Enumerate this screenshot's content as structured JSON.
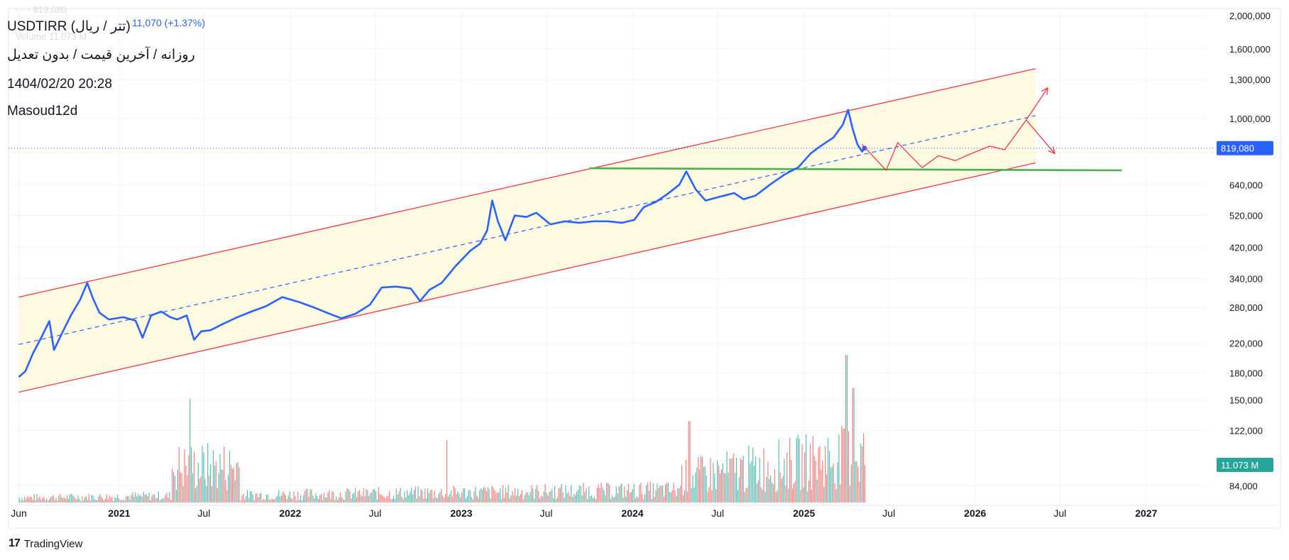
{
  "header": {
    "symbol": "USDTIRR (تتر / ریال)",
    "change": "11,070 (+1.37%)",
    "ghost_price": "◦ ◦ ◦ 819,080",
    "ghost_volume": "Volume  11.073 M",
    "subtitle": "روزانه / آخرین قیمت / بدون تعدیل",
    "datetime": "1404/02/20 20:28",
    "author": "Masoud12d"
  },
  "footer": {
    "brand": "TradingView",
    "logo_glyph": "17"
  },
  "colors": {
    "price_line": "#2962ff",
    "channel": "#f23645",
    "channel_fill": "#fffbe3",
    "support": "#4caf50",
    "vol_up": "#26a69a",
    "vol_down": "#ef5350",
    "volume_badge": "#26a69a"
  },
  "chart_data": {
    "type": "line",
    "y_scale": "log",
    "ylim": [
      78000,
      2100000
    ],
    "xlim": [
      "2020-05-10",
      "2027-05-10"
    ],
    "x_ticks": [
      {
        "date": "2020-06-01",
        "label": "Jun"
      },
      {
        "date": "2021-01-01",
        "label": "2021"
      },
      {
        "date": "2021-07-01",
        "label": "Jul"
      },
      {
        "date": "2022-01-01",
        "label": "2022"
      },
      {
        "date": "2022-07-01",
        "label": "Jul"
      },
      {
        "date": "2023-01-01",
        "label": "2023"
      },
      {
        "date": "2023-07-01",
        "label": "Jul"
      },
      {
        "date": "2024-01-01",
        "label": "2024"
      },
      {
        "date": "2024-07-01",
        "label": "Jul"
      },
      {
        "date": "2025-01-01",
        "label": "2025"
      },
      {
        "date": "2025-07-01",
        "label": "Jul"
      },
      {
        "date": "2026-01-01",
        "label": "2026"
      },
      {
        "date": "2026-07-01",
        "label": "Jul"
      },
      {
        "date": "2027-01-01",
        "label": "2027"
      }
    ],
    "y_ticks": [
      {
        "value": 2000000,
        "label": "2,000,000"
      },
      {
        "value": 1600000,
        "label": "1,600,000"
      },
      {
        "value": 1300000,
        "label": "1,300,000"
      },
      {
        "value": 1000000,
        "label": "1,000,000"
      },
      {
        "value": 640000,
        "label": "640,000"
      },
      {
        "value": 520000,
        "label": "520,000"
      },
      {
        "value": 420000,
        "label": "420,000"
      },
      {
        "value": 340000,
        "label": "340,000"
      },
      {
        "value": 280000,
        "label": "280,000"
      },
      {
        "value": 220000,
        "label": "220,000"
      },
      {
        "value": 180000,
        "label": "180,000"
      },
      {
        "value": 150000,
        "label": "150,000"
      },
      {
        "value": 122000,
        "label": "122,000"
      },
      {
        "value": 84000,
        "label": "84,000"
      }
    ],
    "current_price": {
      "value": 819080,
      "label": "819,080"
    },
    "current_volume": {
      "label": "11.073 M"
    },
    "series": [
      {
        "points": [
          [
            "2020-06-01",
            175000
          ],
          [
            "2020-06-15",
            182000
          ],
          [
            "2020-07-01",
            205000
          ],
          [
            "2020-07-20",
            230000
          ],
          [
            "2020-08-05",
            255000
          ],
          [
            "2020-08-15",
            210000
          ],
          [
            "2020-09-01",
            235000
          ],
          [
            "2020-09-20",
            265000
          ],
          [
            "2020-10-10",
            295000
          ],
          [
            "2020-10-25",
            330000
          ],
          [
            "2020-11-05",
            300000
          ],
          [
            "2020-11-20",
            270000
          ],
          [
            "2020-12-10",
            258000
          ],
          [
            "2021-01-10",
            262000
          ],
          [
            "2021-02-05",
            256000
          ],
          [
            "2021-02-20",
            228000
          ],
          [
            "2021-03-10",
            265000
          ],
          [
            "2021-04-01",
            272000
          ],
          [
            "2021-04-20",
            262000
          ],
          [
            "2021-05-05",
            258000
          ],
          [
            "2021-05-25",
            265000
          ],
          [
            "2021-06-10",
            225000
          ],
          [
            "2021-06-25",
            238000
          ],
          [
            "2021-07-15",
            240000
          ],
          [
            "2021-08-10",
            250000
          ],
          [
            "2021-09-10",
            262000
          ],
          [
            "2021-10-10",
            272000
          ],
          [
            "2021-11-10",
            282000
          ],
          [
            "2021-12-15",
            300000
          ],
          [
            "2022-01-20",
            290000
          ],
          [
            "2022-02-20",
            280000
          ],
          [
            "2022-03-20",
            270000
          ],
          [
            "2022-04-20",
            260000
          ],
          [
            "2022-05-20",
            268000
          ],
          [
            "2022-06-20",
            285000
          ],
          [
            "2022-07-15",
            320000
          ],
          [
            "2022-08-15",
            322000
          ],
          [
            "2022-09-15",
            318000
          ],
          [
            "2022-10-05",
            292000
          ],
          [
            "2022-10-25",
            315000
          ],
          [
            "2022-11-20",
            330000
          ],
          [
            "2022-12-20",
            370000
          ],
          [
            "2023-01-20",
            410000
          ],
          [
            "2023-02-10",
            430000
          ],
          [
            "2023-02-25",
            470000
          ],
          [
            "2023-03-08",
            575000
          ],
          [
            "2023-03-20",
            500000
          ],
          [
            "2023-04-05",
            440000
          ],
          [
            "2023-04-25",
            520000
          ],
          [
            "2023-05-20",
            515000
          ],
          [
            "2023-06-10",
            530000
          ],
          [
            "2023-07-10",
            490000
          ],
          [
            "2023-08-10",
            500000
          ],
          [
            "2023-09-10",
            495000
          ],
          [
            "2023-10-10",
            500000
          ],
          [
            "2023-11-10",
            500000
          ],
          [
            "2023-12-10",
            495000
          ],
          [
            "2024-01-05",
            505000
          ],
          [
            "2024-01-25",
            550000
          ],
          [
            "2024-02-20",
            570000
          ],
          [
            "2024-03-15",
            600000
          ],
          [
            "2024-04-10",
            640000
          ],
          [
            "2024-04-25",
            700000
          ],
          [
            "2024-05-15",
            620000
          ],
          [
            "2024-06-05",
            575000
          ],
          [
            "2024-07-05",
            590000
          ],
          [
            "2024-08-05",
            605000
          ],
          [
            "2024-08-25",
            580000
          ],
          [
            "2024-09-20",
            595000
          ],
          [
            "2024-10-20",
            640000
          ],
          [
            "2024-11-20",
            685000
          ],
          [
            "2024-12-20",
            720000
          ],
          [
            "2025-01-15",
            790000
          ],
          [
            "2025-02-05",
            830000
          ],
          [
            "2025-03-05",
            880000
          ],
          [
            "2025-03-25",
            960000
          ],
          [
            "2025-04-05",
            1060000
          ],
          [
            "2025-04-15",
            930000
          ],
          [
            "2025-04-25",
            840000
          ],
          [
            "2025-05-05",
            800000
          ],
          [
            "2025-05-10",
            819080
          ]
        ]
      }
    ],
    "annotations": {
      "channel_upper": [
        [
          "2020-06-01",
          300000
        ],
        [
          "2026-05-10",
          1400000
        ]
      ],
      "channel_lower": [
        [
          "2020-06-01",
          158000
        ],
        [
          "2026-05-10",
          742000
        ]
      ],
      "channel_mid": [
        [
          "2020-06-01",
          218000
        ],
        [
          "2026-05-10",
          1020000
        ]
      ],
      "support": [
        [
          "2023-10-01",
          715000
        ],
        [
          "2026-11-10",
          705000
        ]
      ],
      "projection": [
        [
          "2025-05-05",
          840000
        ],
        [
          "2025-06-25",
          705000
        ],
        [
          "2025-07-20",
          850000
        ],
        [
          "2025-09-10",
          718000
        ],
        [
          "2025-10-15",
          778000
        ],
        [
          "2025-11-20",
          753000
        ],
        [
          "2025-12-15",
          780000
        ],
        [
          "2026-02-01",
          830000
        ],
        [
          "2026-03-05",
          810000
        ],
        [
          "2026-04-20",
          990000
        ]
      ],
      "projection_up": [
        [
          "2026-04-20",
          990000
        ],
        [
          "2026-06-05",
          1230000
        ]
      ],
      "projection_down": [
        [
          "2026-04-20",
          990000
        ],
        [
          "2026-06-20",
          790000
        ]
      ]
    },
    "volume": {
      "start": "2020-06-01",
      "end": "2025-05-10",
      "bars": 620,
      "max_value": 20,
      "unit": "M",
      "latest": 11.073,
      "spikes": [
        {
          "date": "2021-06-01",
          "value": 14
        },
        {
          "date": "2022-12-01",
          "value": 8.5
        },
        {
          "date": "2024-05-01",
          "value": 11
        },
        {
          "date": "2025-04-01",
          "value": 20
        },
        {
          "date": "2025-04-15",
          "value": 15.5
        }
      ]
    }
  }
}
